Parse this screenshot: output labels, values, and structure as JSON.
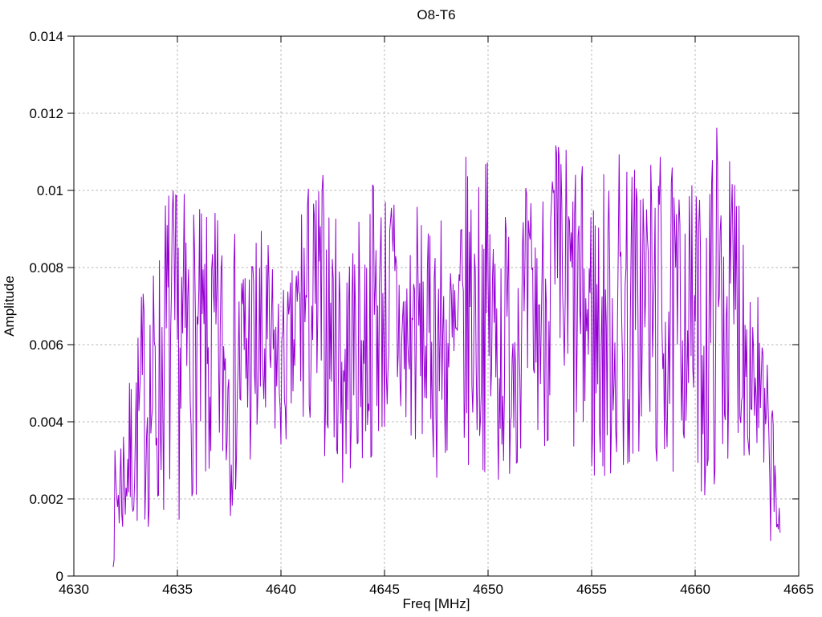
{
  "window": {
    "background": "#ffffff"
  },
  "chart_data": {
    "type": "line",
    "title": "O8-T6",
    "xlabel": "Freq [MHz]",
    "ylabel": "Amplitude",
    "xlim": [
      4630,
      4665
    ],
    "ylim": [
      0,
      0.014
    ],
    "xticks": [
      4630,
      4635,
      4640,
      4645,
      4650,
      4655,
      4660,
      4665
    ],
    "xtick_labels": [
      "4630",
      "4635",
      "4640",
      "4645",
      "4650",
      "4655",
      "4660",
      "4665"
    ],
    "yticks": [
      0,
      0.002,
      0.004,
      0.006,
      0.008,
      0.01,
      0.012,
      0.014
    ],
    "ytick_labels": [
      "0",
      "0.002",
      "0.004",
      "0.006",
      "0.008",
      "0.01",
      "0.012",
      "0.014"
    ],
    "grid": true,
    "grid_style": "dotted",
    "legend": "none",
    "colors": {
      "line": "#9400d3",
      "grid": "#b3b3b3",
      "axis": "#000000",
      "text": "#000000",
      "background": "#ffffff"
    },
    "series": [
      {
        "name": "O8-T6",
        "color": "#9400d3",
        "summary": {
          "x_data_range": [
            4631.9,
            4664.1
          ],
          "amplitude_min": 0.0002,
          "amplitude_max": 0.0122,
          "typical_band": [
            0.002,
            0.0105
          ],
          "peak_freqs_mhz": [
            4653.0,
            4661.0,
            4656.5,
            4662.0,
            4657.5
          ],
          "peak_amplitudes": [
            0.0122,
            0.0122,
            0.0119,
            0.0116,
            0.0116
          ]
        },
        "signal": {
          "x_start": 4631.9,
          "x_end": 4664.1,
          "n_points": 780,
          "seed": 7,
          "envelope": [
            [
              4631.9,
              0.0002,
              0.003
            ],
            [
              4632.2,
              0.0005,
              0.0042
            ],
            [
              4632.6,
              0.001,
              0.0048
            ],
            [
              4633.0,
              0.001,
              0.0062
            ],
            [
              4633.4,
              0.0012,
              0.0081
            ],
            [
              4634.0,
              0.001,
              0.0082
            ],
            [
              4634.5,
              0.0015,
              0.0107
            ],
            [
              4635.0,
              0.0013,
              0.0101
            ],
            [
              4635.5,
              0.002,
              0.0101
            ],
            [
              4636.0,
              0.002,
              0.0096
            ],
            [
              4636.5,
              0.0015,
              0.0093
            ],
            [
              4637.0,
              0.002,
              0.0096
            ],
            [
              4637.5,
              0.0015,
              0.009
            ],
            [
              4638.0,
              0.002,
              0.009
            ],
            [
              4638.5,
              0.0025,
              0.0092
            ],
            [
              4639.0,
              0.002,
              0.0092
            ],
            [
              4639.5,
              0.003,
              0.0085
            ],
            [
              4640.0,
              0.003,
              0.0075
            ],
            [
              4640.5,
              0.0035,
              0.0078
            ],
            [
              4641.0,
              0.003,
              0.0107
            ],
            [
              4641.5,
              0.0035,
              0.0102
            ],
            [
              4642.0,
              0.003,
              0.0107
            ],
            [
              4642.5,
              0.0035,
              0.0094
            ],
            [
              4643.0,
              0.0015,
              0.0094
            ],
            [
              4643.5,
              0.003,
              0.009
            ],
            [
              4644.0,
              0.0025,
              0.0095
            ],
            [
              4644.5,
              0.003,
              0.0108
            ],
            [
              4645.0,
              0.0035,
              0.0102
            ],
            [
              4645.5,
              0.003,
              0.0107
            ],
            [
              4646.0,
              0.0025,
              0.009
            ],
            [
              4646.5,
              0.003,
              0.0102
            ],
            [
              4647.0,
              0.0035,
              0.0085
            ],
            [
              4647.5,
              0.0025,
              0.0102
            ],
            [
              4648.0,
              0.0025,
              0.009
            ],
            [
              4648.5,
              0.002,
              0.0092
            ],
            [
              4649.0,
              0.0025,
              0.0112
            ],
            [
              4649.5,
              0.003,
              0.0105
            ],
            [
              4650.0,
              0.0025,
              0.011
            ],
            [
              4650.5,
              0.002,
              0.0098
            ],
            [
              4651.0,
              0.0025,
              0.0098
            ],
            [
              4651.5,
              0.003,
              0.0101
            ],
            [
              4652.0,
              0.003,
              0.0102
            ],
            [
              4652.5,
              0.0035,
              0.0096
            ],
            [
              4653.0,
              0.003,
              0.0122
            ],
            [
              4653.5,
              0.0035,
              0.0114
            ],
            [
              4654.0,
              0.0025,
              0.0114
            ],
            [
              4654.5,
              0.003,
              0.0107
            ],
            [
              4655.0,
              0.002,
              0.0107
            ],
            [
              4655.5,
              0.0019,
              0.0107
            ],
            [
              4656.0,
              0.0025,
              0.0105
            ],
            [
              4656.5,
              0.002,
              0.0119
            ],
            [
              4657.0,
              0.0025,
              0.0108
            ],
            [
              4657.5,
              0.003,
              0.0116
            ],
            [
              4658.0,
              0.0025,
              0.0109
            ],
            [
              4658.5,
              0.0025,
              0.0113
            ],
            [
              4659.0,
              0.002,
              0.0104
            ],
            [
              4659.5,
              0.0035,
              0.0104
            ],
            [
              4660.0,
              0.003,
              0.0102
            ],
            [
              4660.5,
              0.0015,
              0.01
            ],
            [
              4661.0,
              0.0025,
              0.0122
            ],
            [
              4661.5,
              0.003,
              0.0105
            ],
            [
              4662.0,
              0.003,
              0.0116
            ],
            [
              4662.5,
              0.003,
              0.009
            ],
            [
              4663.0,
              0.0025,
              0.0078
            ],
            [
              4663.3,
              0.0015,
              0.0062
            ],
            [
              4663.6,
              0.001,
              0.005
            ],
            [
              4663.9,
              0.0004,
              0.0044
            ],
            [
              4664.1,
              0.0002,
              0.0012
            ]
          ]
        }
      }
    ]
  }
}
